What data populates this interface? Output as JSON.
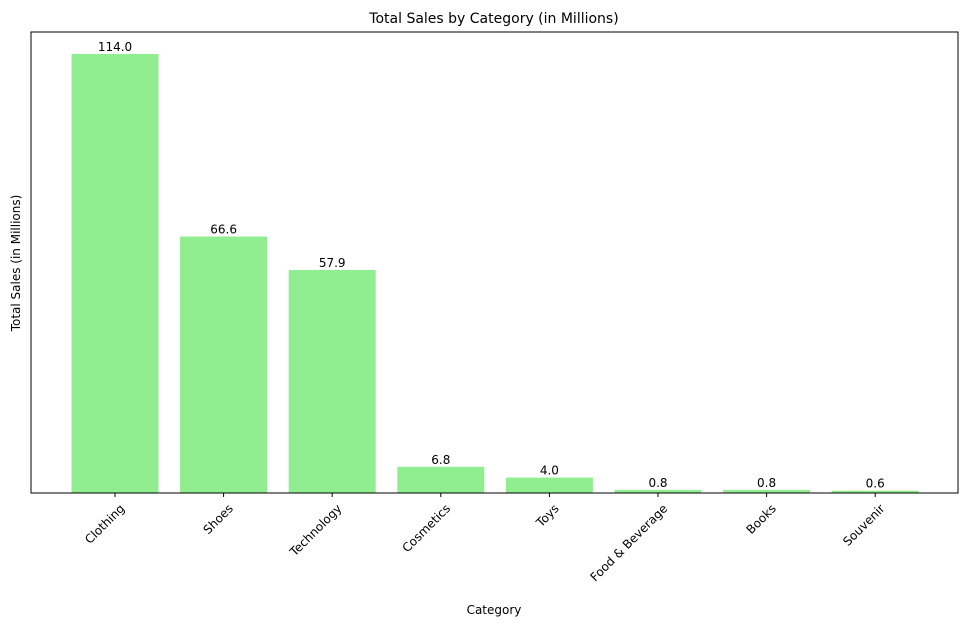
{
  "chart_data": {
    "type": "bar",
    "title": "Total Sales by Category (in Millions)",
    "xlabel": "Category",
    "ylabel": "Total Sales (in Millions)",
    "categories": [
      "Clothing",
      "Shoes",
      "Technology",
      "Cosmetics",
      "Toys",
      "Food & Beverage",
      "Books",
      "Souvenir"
    ],
    "values": [
      114.0,
      66.6,
      57.9,
      6.8,
      4.0,
      0.8,
      0.8,
      0.6
    ],
    "data_labels": [
      "114.0",
      "66.6",
      "57.9",
      "6.8",
      "4.0",
      "0.8",
      "0.8",
      "0.6"
    ],
    "bar_color": "#90ee90",
    "ylim": [
      0,
      119.7
    ],
    "yticks_visible": false,
    "grid": false,
    "legend": "none"
  }
}
